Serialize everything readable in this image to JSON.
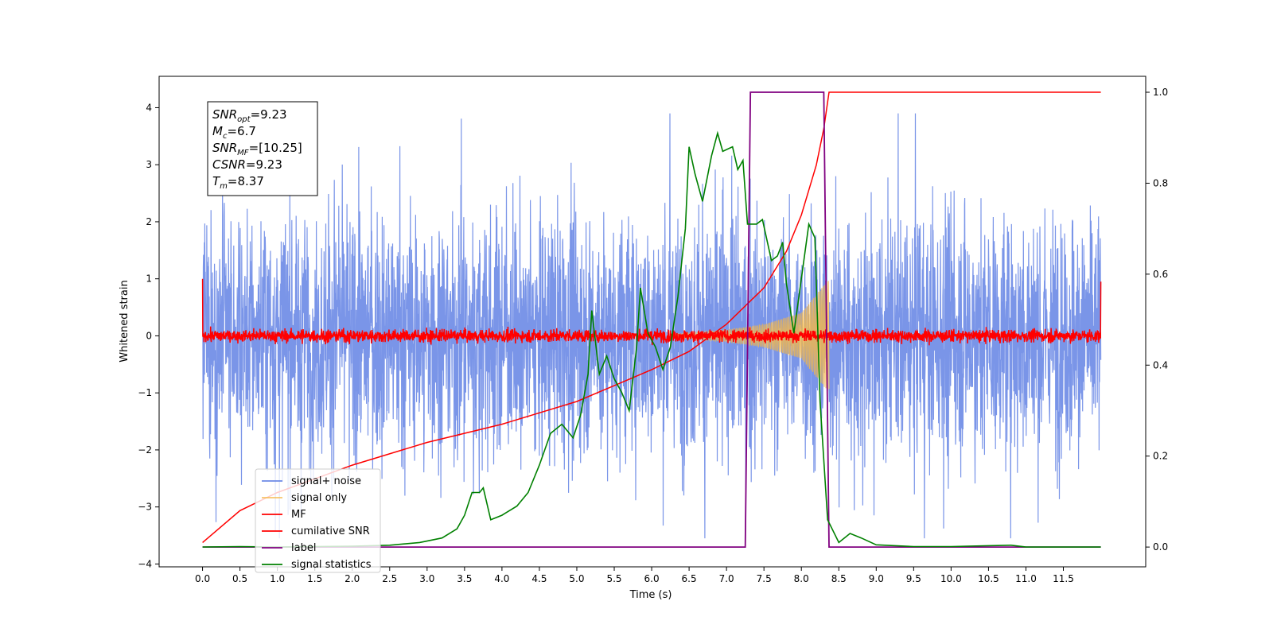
{
  "chart_data": {
    "type": "line",
    "title": "",
    "xlabel": "Time (s)",
    "ylabel": "Whitened strain",
    "xlim": [
      -0.58,
      12.6
    ],
    "ylim": [
      -4.05,
      4.55
    ],
    "y2lim": [
      -0.0435,
      1.035
    ],
    "xticks": [
      "0.0",
      "0.5",
      "1.0",
      "1.5",
      "2.0",
      "2.5",
      "3.0",
      "3.5",
      "4.0",
      "4.5",
      "5.0",
      "5.5",
      "6.0",
      "6.5",
      "7.0",
      "7.5",
      "8.0",
      "8.5",
      "9.0",
      "9.5",
      "10.0",
      "10.5",
      "11.0",
      "11.5"
    ],
    "yticks": [
      "4",
      "3",
      "2",
      "1",
      "0",
      "−1",
      "−2",
      "−3",
      "−4"
    ],
    "y2ticks": [
      "1.0",
      "0.8",
      "0.6",
      "0.4",
      "0.2",
      "0.0"
    ],
    "grid": false,
    "legend_position": "bottom-left",
    "annotation": [
      {
        "base": "SNR",
        "sub": "opt",
        "value": "=9.23"
      },
      {
        "base": "M",
        "sub": "c",
        "value": "=6.7"
      },
      {
        "base": "SNR",
        "sub": "MF",
        "value": "=[10.25]"
      },
      {
        "base": "CSNR",
        "sub": "",
        "value": "=9.23"
      },
      {
        "base": "T",
        "sub": "m",
        "value": "=8.37"
      }
    ],
    "series": [
      {
        "name": "signal+ noise",
        "color": "#6b8ae6",
        "axis": "left",
        "description": "whitened noisy strain, t from 0.0 to 12.0; roughly ±1.5 typical, peaks near ±3.5; flat zero segment near 8.35"
      },
      {
        "name": "signal only",
        "color": "#f5b847",
        "axis": "left",
        "envelope": {
          "t": [
            6.3,
            7.0,
            7.5,
            8.0,
            8.37
          ],
          "amp": [
            0.03,
            0.1,
            0.2,
            0.4,
            1.0
          ]
        }
      },
      {
        "name": "MF",
        "color": "#ff0000",
        "axis": "left",
        "description": "matched-filter output, t 0.0–12.0, noise about ±0.1, spikes to 1.0 at t=0 and 0.95 at t=12"
      },
      {
        "name": "cumilative SNR",
        "color": "#ff0000",
        "axis": "right",
        "points": [
          [
            0.0,
            0.01
          ],
          [
            0.5,
            0.08
          ],
          [
            1.0,
            0.12
          ],
          [
            2.0,
            0.18
          ],
          [
            3.0,
            0.23
          ],
          [
            4.0,
            0.27
          ],
          [
            5.0,
            0.32
          ],
          [
            6.0,
            0.39
          ],
          [
            6.5,
            0.43
          ],
          [
            7.0,
            0.49
          ],
          [
            7.5,
            0.57
          ],
          [
            7.8,
            0.65
          ],
          [
            8.0,
            0.73
          ],
          [
            8.2,
            0.84
          ],
          [
            8.3,
            0.92
          ],
          [
            8.37,
            1.0
          ],
          [
            12.0,
            1.0
          ]
        ]
      },
      {
        "name": "label",
        "color": "#800080",
        "axis": "right",
        "points": [
          [
            0.0,
            0.0
          ],
          [
            7.25,
            0.0
          ],
          [
            7.32,
            1.0
          ],
          [
            8.3,
            1.0
          ],
          [
            8.37,
            0.0
          ],
          [
            12.0,
            0.0
          ]
        ]
      },
      {
        "name": "signal statistics",
        "color": "#008000",
        "axis": "right",
        "points": [
          [
            0.0,
            0.0
          ],
          [
            0.5,
            0.001
          ],
          [
            1.0,
            0.0
          ],
          [
            1.5,
            0.001
          ],
          [
            2.0,
            0.002
          ],
          [
            2.5,
            0.004
          ],
          [
            2.9,
            0.01
          ],
          [
            3.2,
            0.02
          ],
          [
            3.4,
            0.04
          ],
          [
            3.5,
            0.07
          ],
          [
            3.6,
            0.12
          ],
          [
            3.7,
            0.12
          ],
          [
            3.75,
            0.13
          ],
          [
            3.85,
            0.06
          ],
          [
            4.0,
            0.07
          ],
          [
            4.2,
            0.09
          ],
          [
            4.35,
            0.12
          ],
          [
            4.5,
            0.18
          ],
          [
            4.65,
            0.25
          ],
          [
            4.8,
            0.27
          ],
          [
            4.95,
            0.24
          ],
          [
            5.05,
            0.29
          ],
          [
            5.15,
            0.38
          ],
          [
            5.2,
            0.52
          ],
          [
            5.3,
            0.38
          ],
          [
            5.4,
            0.42
          ],
          [
            5.5,
            0.37
          ],
          [
            5.6,
            0.34
          ],
          [
            5.7,
            0.3
          ],
          [
            5.8,
            0.44
          ],
          [
            5.85,
            0.57
          ],
          [
            5.95,
            0.47
          ],
          [
            6.05,
            0.44
          ],
          [
            6.15,
            0.39
          ],
          [
            6.25,
            0.44
          ],
          [
            6.35,
            0.55
          ],
          [
            6.45,
            0.7
          ],
          [
            6.5,
            0.88
          ],
          [
            6.58,
            0.82
          ],
          [
            6.68,
            0.76
          ],
          [
            6.8,
            0.86
          ],
          [
            6.88,
            0.91
          ],
          [
            6.95,
            0.87
          ],
          [
            7.08,
            0.88
          ],
          [
            7.15,
            0.83
          ],
          [
            7.22,
            0.85
          ],
          [
            7.28,
            0.71
          ],
          [
            7.4,
            0.71
          ],
          [
            7.48,
            0.72
          ],
          [
            7.6,
            0.63
          ],
          [
            7.68,
            0.64
          ],
          [
            7.75,
            0.67
          ],
          [
            7.8,
            0.58
          ],
          [
            7.9,
            0.47
          ],
          [
            8.0,
            0.59
          ],
          [
            8.1,
            0.71
          ],
          [
            8.18,
            0.68
          ],
          [
            8.25,
            0.32
          ],
          [
            8.35,
            0.06
          ],
          [
            8.5,
            0.01
          ],
          [
            8.65,
            0.03
          ],
          [
            8.8,
            0.02
          ],
          [
            9.0,
            0.005
          ],
          [
            9.5,
            0.001
          ],
          [
            10.0,
            0.001
          ],
          [
            10.5,
            0.003
          ],
          [
            10.8,
            0.004
          ],
          [
            11.0,
            0.0
          ],
          [
            12.0,
            0.0
          ]
        ]
      }
    ]
  }
}
